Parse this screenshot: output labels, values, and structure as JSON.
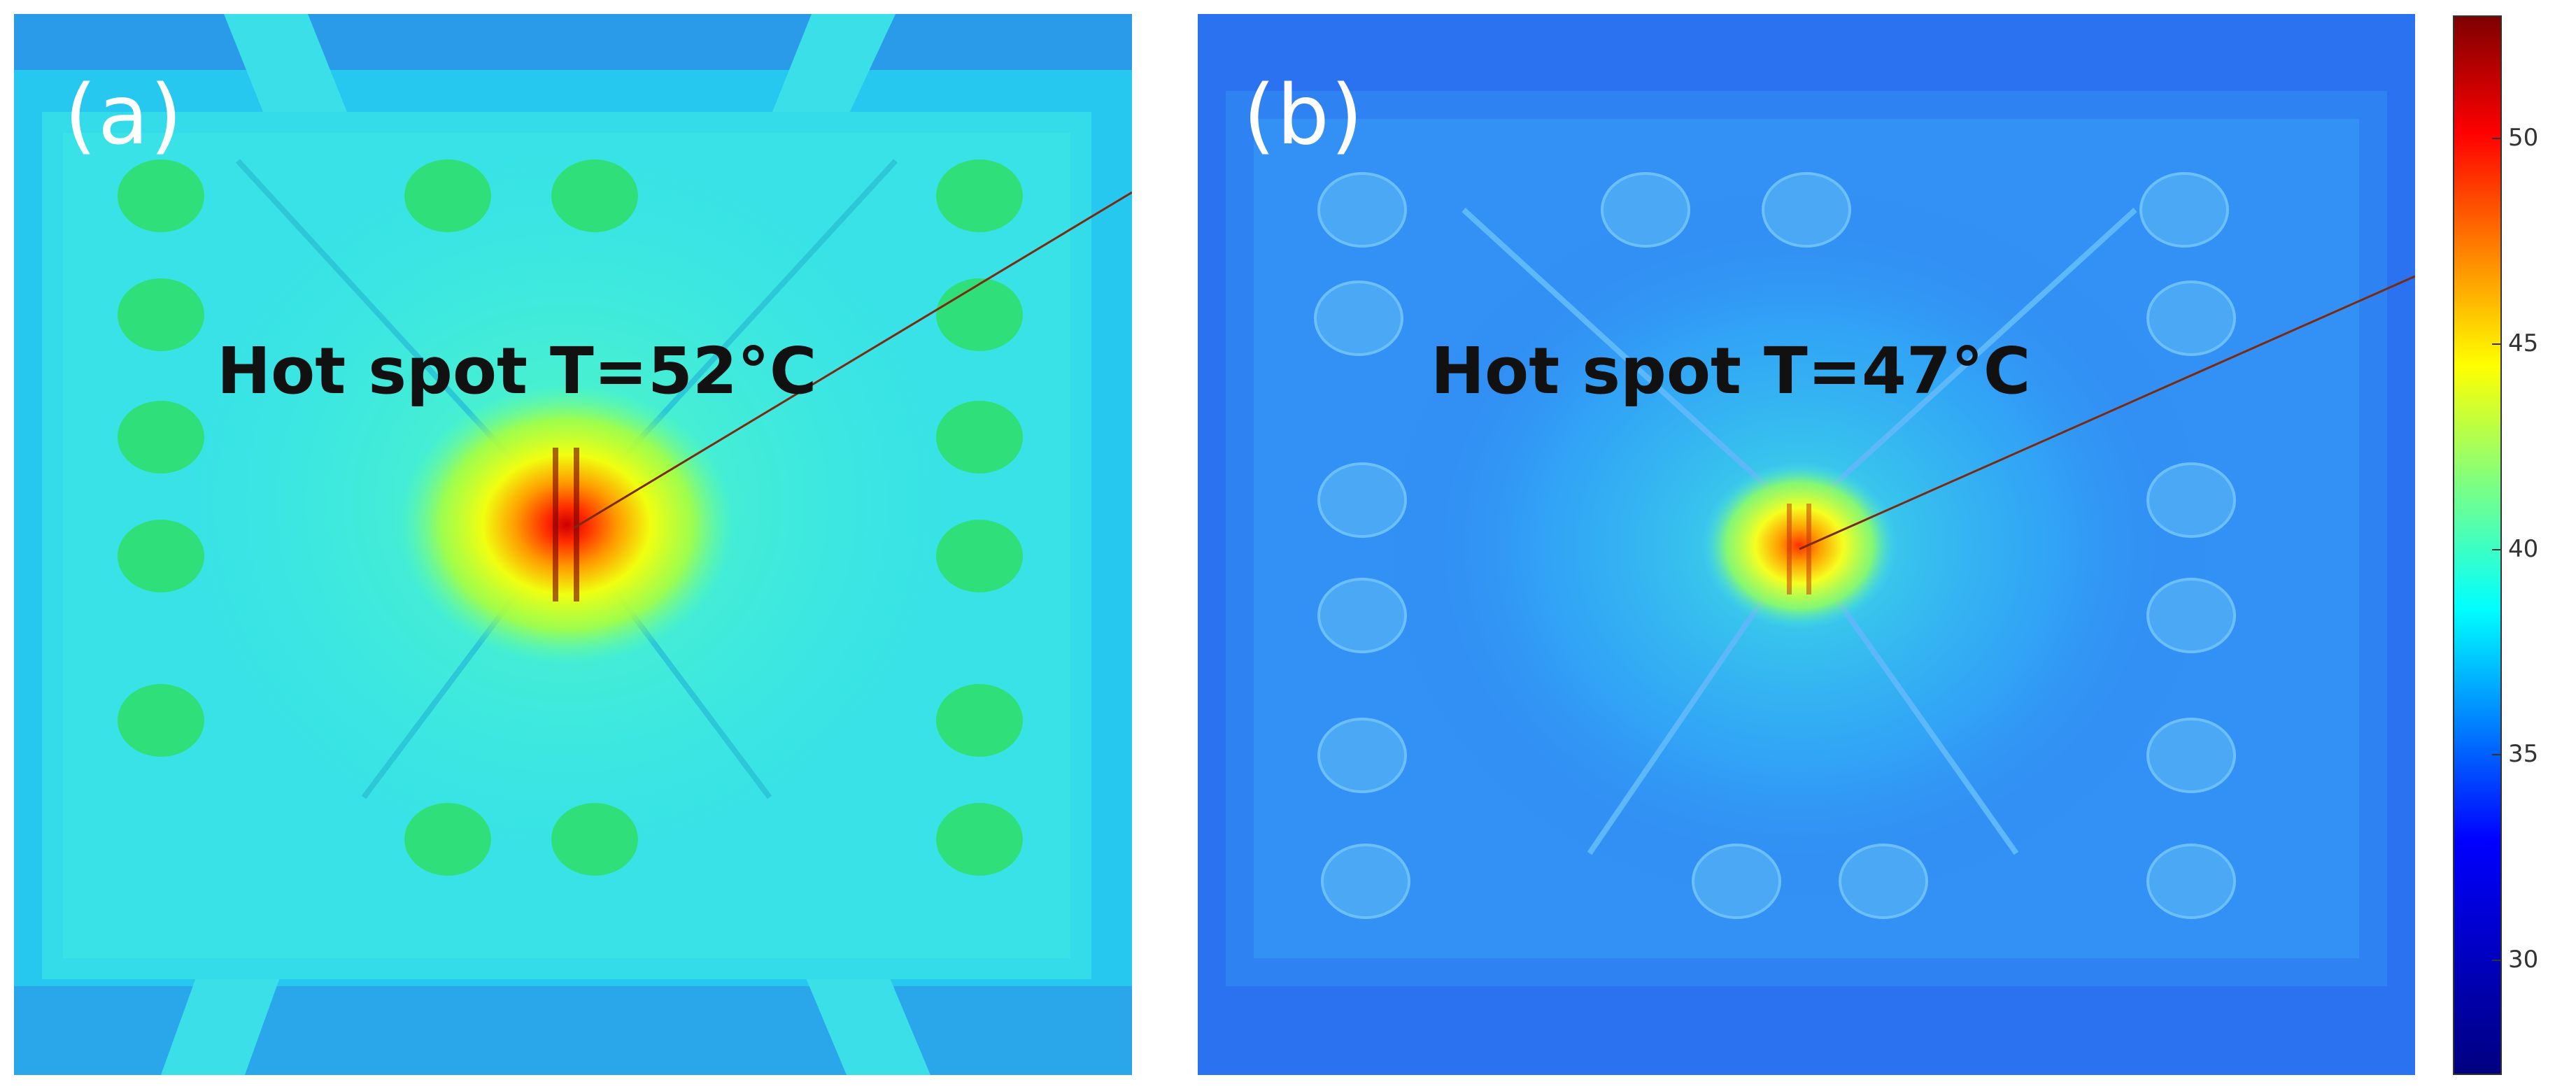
{
  "panels": [
    {
      "label": "(a)",
      "annotation": "Hot spot T=52°C"
    },
    {
      "label": "(b)",
      "annotation": "Hot spot T=47°C"
    }
  ],
  "colorbar": {
    "ticks": [
      "50",
      "45",
      "40",
      "35",
      "30"
    ],
    "colormap": "jet",
    "colors": {
      "max": "#7f0000",
      "high": "#ff0000",
      "mid": "#00ff80",
      "low": "#0000ff",
      "min": "#000080"
    }
  }
}
